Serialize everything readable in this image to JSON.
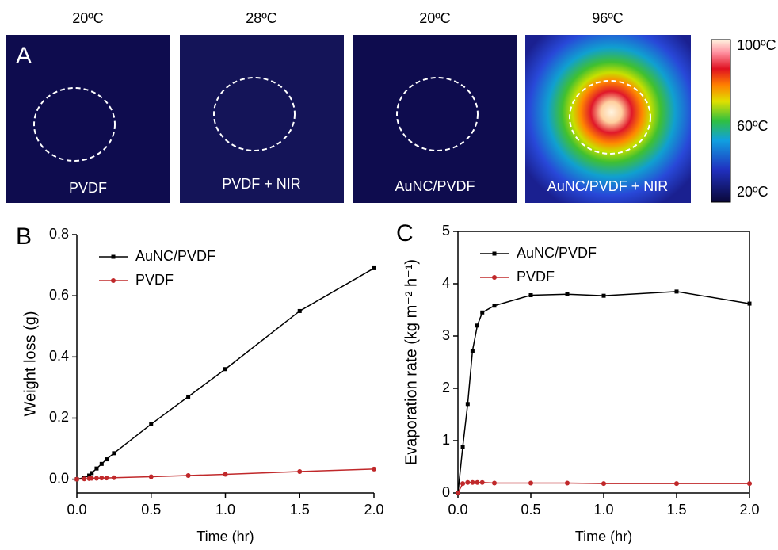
{
  "panel_a": {
    "label": "A",
    "images": [
      {
        "temperature": "20ºC",
        "caption": "PVDF"
      },
      {
        "temperature": "28ºC",
        "caption": "PVDF + NIR"
      },
      {
        "temperature": "20ºC",
        "caption": "AuNC/PVDF"
      },
      {
        "temperature": "96ºC",
        "caption": "AuNC/PVDF + NIR"
      }
    ],
    "colorbar_labels": [
      "100ºC",
      "60ºC",
      "20ºC"
    ]
  },
  "chart_data": [
    {
      "type": "line",
      "panel_label": "B",
      "x_label": "Time (hr)",
      "y_label": "Weight loss (g)",
      "x": [
        0,
        0.05,
        0.083,
        0.1,
        0.133,
        0.167,
        0.2,
        0.25,
        0.5,
        0.75,
        1.0,
        1.5,
        2.0
      ],
      "series": [
        {
          "name": "AuNC/PVDF",
          "color": "#000000",
          "marker": "square",
          "values": [
            0,
            0.005,
            0.012,
            0.02,
            0.035,
            0.05,
            0.065,
            0.085,
            0.18,
            0.27,
            0.36,
            0.55,
            0.69
          ]
        },
        {
          "name": "PVDF",
          "color": "#c0282a",
          "marker": "circle",
          "values": [
            0,
            0.001,
            0.002,
            0.003,
            0.003,
            0.004,
            0.004,
            0.005,
            0.008,
            0.012,
            0.016,
            0.025,
            0.033
          ]
        }
      ],
      "xlim": [
        0,
        2.0
      ],
      "ylim": [
        -0.045,
        0.8
      ],
      "xticks": [
        {
          "value": 0,
          "label": "0.0"
        },
        {
          "value": 0.5,
          "label": "0.5"
        },
        {
          "value": 1,
          "label": "1.0"
        },
        {
          "value": 1.5,
          "label": "1.5"
        },
        {
          "value": 2,
          "label": "2.0"
        }
      ],
      "yticks": [
        {
          "value": 0,
          "label": "0.0"
        },
        0.2,
        0.4,
        0.6,
        0.8
      ],
      "legend": "upper left",
      "box": false
    },
    {
      "type": "line",
      "panel_label": "C",
      "x_label": "Time (hr)",
      "y_label": "Evaporation rate (kg m⁻² h⁻¹)",
      "x": [
        0,
        0.033,
        0.067,
        0.1,
        0.133,
        0.167,
        0.25,
        0.5,
        0.75,
        1.0,
        1.5,
        2.0
      ],
      "series": [
        {
          "name": "AuNC/PVDF",
          "color": "#000000",
          "marker": "square",
          "values": [
            0,
            0.88,
            1.7,
            2.72,
            3.2,
            3.45,
            3.58,
            3.78,
            3.8,
            3.77,
            3.85,
            3.62
          ]
        },
        {
          "name": "PVDF",
          "color": "#c0282a",
          "marker": "circle",
          "values": [
            0,
            0.18,
            0.2,
            0.2,
            0.2,
            0.2,
            0.19,
            0.19,
            0.19,
            0.18,
            0.18,
            0.18
          ]
        }
      ],
      "xlim": [
        0,
        2.0
      ],
      "ylim": [
        0,
        5
      ],
      "xticks": [
        {
          "value": 0,
          "label": "0.0"
        },
        {
          "value": 0.5,
          "label": "0.5"
        },
        {
          "value": 1,
          "label": "1.0"
        },
        {
          "value": 1.5,
          "label": "1.5"
        },
        {
          "value": 2,
          "label": "2.0"
        }
      ],
      "yticks": [
        0,
        1,
        2,
        3,
        4,
        5
      ],
      "legend": "upper left",
      "box": true
    }
  ]
}
